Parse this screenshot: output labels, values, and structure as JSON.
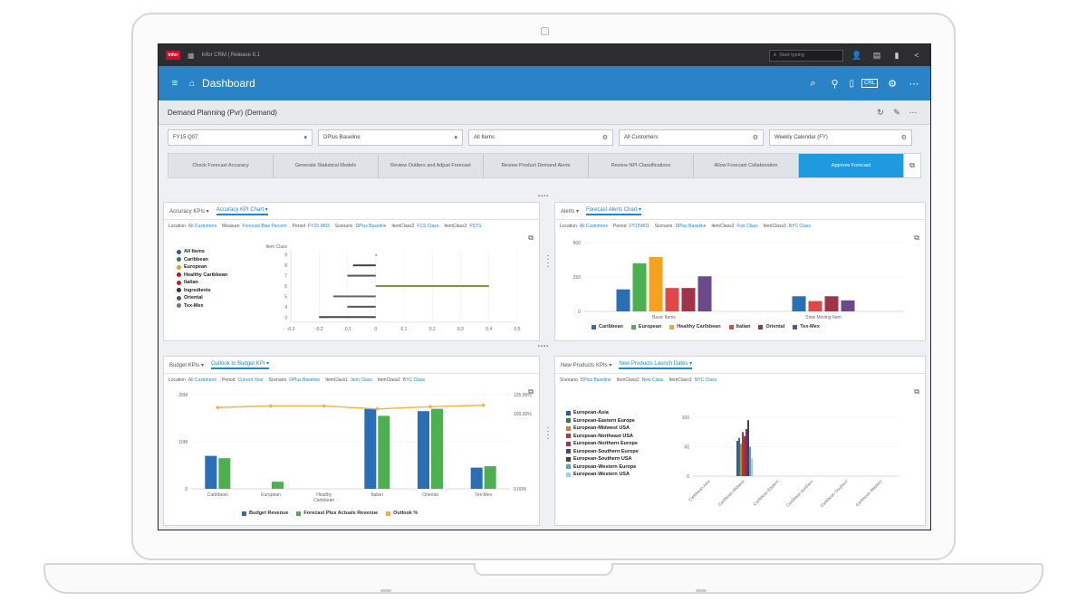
{
  "app": {
    "logo": "infor",
    "name": "Infor CRM | Release 8.1",
    "search_placeholder": "Start typing"
  },
  "header": {
    "title": "Dashboard",
    "badge": "CRL"
  },
  "subheader": {
    "title": "Demand Planning (Pvr) (Demand)"
  },
  "filters": [
    {
      "value": "FY15 Q07"
    },
    {
      "value": "DPlus Baseline"
    },
    {
      "value": "All Items"
    },
    {
      "value": "All Customers"
    },
    {
      "value": "Weekly Calendar (FY)"
    }
  ],
  "steps": [
    "Check Forecast Accuracy",
    "Generate Statistical Models",
    "Review Outliers and Adjust Forecast",
    "Review Product Demand Alerts",
    "Review NPI Classifications",
    "Allow Forecast Collaboration",
    "Approve Forecast"
  ],
  "panel1": {
    "tabs": [
      "Accuracy KPIs",
      "Accuracy KPI Chart"
    ],
    "filters": [
      [
        "Location",
        "All Customers"
      ],
      [
        "Measure",
        "Forecast Bias Percent"
      ],
      [
        "Period",
        "FY15 W03"
      ],
      [
        "Scenario",
        "DPlus Baseline"
      ],
      [
        "ItemClass2",
        "FCS Class"
      ],
      [
        "ItemClass3",
        "PSTS"
      ]
    ],
    "axis_label": "Item Class",
    "legend": [
      {
        "name": "All Items",
        "color": "#2a5aa8"
      },
      {
        "name": "Caribbean",
        "color": "#2e7d5a"
      },
      {
        "name": "European",
        "color": "#e0a020"
      },
      {
        "name": "Healthy Caribbean",
        "color": "#b02020"
      },
      {
        "name": "Italian",
        "color": "#b02030"
      },
      {
        "name": "Ingredients",
        "color": "#333333"
      },
      {
        "name": "Oriental",
        "color": "#555555"
      },
      {
        "name": "Tex-Mex",
        "color": "#777777"
      }
    ],
    "x_ticks": [
      "-0.3",
      "-0.2",
      "-0.1",
      "0",
      "0.1",
      "0.2",
      "0.3",
      "0.4",
      "0.5"
    ],
    "y_ticks": [
      "9",
      "8",
      "7",
      "6",
      "5",
      "4",
      "3"
    ]
  },
  "panel2": {
    "tabs": [
      "Alerts",
      "Forecast Alerts Chart"
    ],
    "filters": [
      [
        "Location",
        "All Customers"
      ],
      [
        "Period",
        "FY15W01"
      ],
      [
        "Scenario",
        "DPlus Baseline"
      ],
      [
        "ItemClass2",
        "Fcst Class"
      ],
      [
        "ItemClass3",
        "BYC Class"
      ]
    ],
    "y_ticks": [
      "500",
      "250",
      "0"
    ],
    "categories": [
      "Basic Items",
      "Slow Moving Item"
    ],
    "legend": [
      {
        "name": "Caribbean",
        "color": "#2a6fb3"
      },
      {
        "name": "European",
        "color": "#4caf50"
      },
      {
        "name": "Healthy Caribbean",
        "color": "#f4a21f"
      },
      {
        "name": "Italian",
        "color": "#e04848"
      },
      {
        "name": "Oriental",
        "color": "#a0324a"
      },
      {
        "name": "Tex-Mex",
        "color": "#6a4a8a"
      }
    ]
  },
  "panel3": {
    "tabs": [
      "Budget KPIs",
      "Outlook to Budget KPI"
    ],
    "filters": [
      [
        "Location",
        "All Customers"
      ],
      [
        "Period",
        "Current Year"
      ],
      [
        "Scenario",
        "DPlus Baseline"
      ],
      [
        "ItemClass1",
        "Item Class"
      ],
      [
        "ItemClass2",
        "BYC Class"
      ]
    ],
    "y_left": [
      "20M",
      "10M",
      "0"
    ],
    "y_right": [
      "125.00%",
      "100.00%",
      "0.00%"
    ],
    "categories": [
      "Caribbean",
      "European",
      "Healthy Caribbean",
      "Italian",
      "Oriental",
      "Tex-Mex"
    ],
    "legend": [
      {
        "name": "Budget Revenue",
        "color": "#2a6fb3"
      },
      {
        "name": "Forecast Plus Actuals Revenue",
        "color": "#4caf50"
      },
      {
        "name": "Outlook %",
        "color": "#f4b040"
      }
    ]
  },
  "panel4": {
    "tabs": [
      "New Products KPIs",
      "New Products Launch Dates"
    ],
    "filters": [
      [
        "Scenario",
        "DPlus Baseline"
      ],
      [
        "ItemClass2",
        "New Class"
      ],
      [
        "ItemClass3",
        "NYC Class"
      ]
    ],
    "y_ticks": [
      "100",
      "50",
      "0"
    ],
    "legend": [
      {
        "name": "European-Asia",
        "color": "#2a5aa8"
      },
      {
        "name": "European-Eastern Europe",
        "color": "#2e7d5a"
      },
      {
        "name": "European-Midwest USA",
        "color": "#e07a20"
      },
      {
        "name": "European-Northeast USA",
        "color": "#c03030"
      },
      {
        "name": "European-Northern Europe",
        "color": "#a0324a"
      },
      {
        "name": "European-Southern Europe",
        "color": "#5a3a7a"
      },
      {
        "name": "European-Southern USA",
        "color": "#444444"
      },
      {
        "name": "European-Western Europe",
        "color": "#5aa0c8"
      },
      {
        "name": "European-Western USA",
        "color": "#a0d0e8"
      }
    ],
    "x_labels": [
      "Caribbean-Asia",
      "Caribbean-Midwest",
      "Caribbean-Eastern",
      "Caribbean-Northern",
      "Caribbean-Southern",
      "Caribbean-Western"
    ]
  },
  "chart_data": [
    {
      "type": "bar",
      "orientation": "horizontal",
      "ylabel": "Item Class",
      "xlim": [
        -0.3,
        0.5
      ],
      "categories": [
        "9",
        "8",
        "7",
        "6",
        "5",
        "4",
        "3"
      ],
      "series": [
        {
          "values": [
            0.0,
            -0.08,
            -0.1,
            0.4,
            -0.15,
            -0.1,
            -0.2
          ]
        }
      ]
    },
    {
      "type": "bar",
      "categories": [
        "Basic Items",
        "Slow Moving Item"
      ],
      "ylim": [
        0,
        500
      ],
      "series": [
        {
          "name": "Caribbean",
          "values": [
            160,
            110
          ]
        },
        {
          "name": "European",
          "values": [
            350,
            0
          ]
        },
        {
          "name": "Healthy Caribbean",
          "values": [
            395,
            0
          ]
        },
        {
          "name": "Italian",
          "values": [
            170,
            75
          ]
        },
        {
          "name": "Oriental",
          "values": [
            170,
            110
          ]
        },
        {
          "name": "Tex-Mex",
          "values": [
            255,
            80
          ]
        }
      ]
    },
    {
      "type": "bar",
      "categories": [
        "Caribbean",
        "European",
        "Healthy Caribbean",
        "Italian",
        "Oriental",
        "Tex-Mex"
      ],
      "ylim": [
        0,
        20
      ],
      "series": [
        {
          "name": "Budget Revenue",
          "values": [
            7,
            0,
            0,
            17,
            16.5,
            4.5
          ]
        },
        {
          "name": "Forecast Plus Actuals Revenue",
          "values": [
            6.5,
            1.5,
            0,
            15.5,
            17,
            4.8
          ]
        },
        {
          "name": "Outlook %",
          "values": [
            108,
            110,
            110,
            106,
            109,
            111
          ]
        }
      ]
    },
    {
      "type": "bar",
      "categories": [
        "Caribbean-Asia",
        "Caribbean-Midwest",
        "Caribbean-Eastern",
        "Caribbean-Northern",
        "Caribbean-Southern",
        "Caribbean-Western"
      ],
      "ylim": [
        0,
        120
      ],
      "series": [
        {
          "name": "European-Asia",
          "values": [
            0,
            60,
            0,
            0,
            0,
            0
          ]
        },
        {
          "name": "European-Eastern Europe",
          "values": [
            0,
            65,
            0,
            0,
            0,
            0
          ]
        },
        {
          "name": "European-Midwest USA",
          "values": [
            0,
            55,
            0,
            0,
            0,
            0
          ]
        },
        {
          "name": "European-Northeast USA",
          "values": [
            0,
            75,
            0,
            0,
            0,
            0
          ]
        },
        {
          "name": "European-Northern Europe",
          "values": [
            0,
            68,
            0,
            0,
            0,
            0
          ]
        },
        {
          "name": "European-Southern Europe",
          "values": [
            0,
            80,
            0,
            0,
            0,
            0
          ]
        },
        {
          "name": "European-Southern USA",
          "values": [
            0,
            95,
            0,
            0,
            0,
            0
          ]
        },
        {
          "name": "European-Western Europe",
          "values": [
            0,
            50,
            0,
            0,
            0,
            0
          ]
        },
        {
          "name": "European-Western USA",
          "values": [
            0,
            30,
            0,
            0,
            0,
            0
          ]
        }
      ]
    }
  ]
}
